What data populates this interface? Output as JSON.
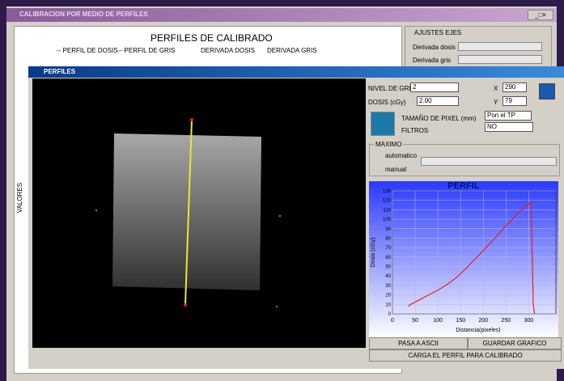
{
  "window": {
    "title": "CALIBRACION POR MEDIO DE PERFILES"
  },
  "main_panel": {
    "title": "PERFILES DE CALIBRADO",
    "legend": [
      "-- PERFIL DE DOSIS",
      "-- PERFIL DE GRIS",
      "DERIVADA DOSIS",
      "DERIVADA GRIS"
    ],
    "y_label": "VALORES"
  },
  "ajustes": {
    "title": "AJUSTES EJES",
    "rows": [
      "Derivada dosis",
      "Derivada gris"
    ]
  },
  "perfiles": {
    "title": "PERFILES",
    "nivel_gris": {
      "label": "NIVEL DE GRIS",
      "value": "2"
    },
    "dosis": {
      "label": "DOSIS (cGy)",
      "value": "2.00"
    },
    "x": {
      "label": "X",
      "value": "290"
    },
    "y": {
      "label": "Y",
      "value": "79"
    },
    "pixel": {
      "label": "TAMAÑO DE PIXEL (mm)",
      "value": "Pon el TP"
    },
    "filtros": {
      "label": "FILTROS",
      "value": "NO"
    },
    "maximo": {
      "title": "MAXIMO",
      "options": [
        "automatico",
        "manual"
      ]
    },
    "buttons": [
      "PASA A ASCII",
      "GUARDAR GRAFICO",
      "CARGA EL PERFIL PARA CALIBRADO"
    ]
  },
  "chart_data": {
    "type": "line",
    "title": "PERFIL",
    "x_label": "Distancia(pixeles)",
    "y_label": "Dosis (cGy)",
    "x": [
      35,
      40,
      60,
      80,
      100,
      120,
      140,
      160,
      180,
      200,
      220,
      240,
      260,
      280,
      300,
      305,
      308,
      310,
      313
    ],
    "values": [
      8,
      10,
      15,
      20,
      25,
      31,
      38,
      47,
      57,
      67,
      77,
      88,
      98,
      108,
      116,
      118,
      60,
      10,
      0
    ],
    "color": "#e0202a",
    "xlim": [
      0,
      360
    ],
    "ylim": [
      0,
      130
    ],
    "xticks": [
      0,
      50,
      100,
      150,
      200,
      250,
      300
    ],
    "yticks": [
      0,
      10,
      20,
      30,
      40,
      50,
      60,
      70,
      80,
      90,
      100,
      110,
      120,
      130
    ]
  }
}
